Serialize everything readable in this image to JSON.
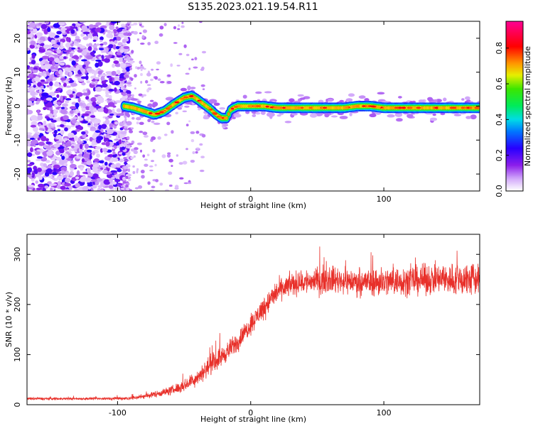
{
  "title": "S135.2023.021.19.54.R11",
  "chart_data": [
    {
      "type": "heatmap",
      "xlabel": "Height of straight line (km)",
      "ylabel": "Frequency (Hz)",
      "xlim": [
        -168,
        172
      ],
      "ylim": [
        -25,
        25
      ],
      "xticks": [
        -100,
        0,
        100
      ],
      "yticks": [
        -20,
        -10,
        0,
        10,
        20
      ],
      "colorbar": {
        "label": "Normalized spectral amplitude",
        "range": [
          0,
          0.95
        ],
        "ticks": [
          "0.0",
          "0.2",
          "0.4",
          "0.6",
          "0.8"
        ],
        "colormap": "rainbow (white-violet-blue-cyan-green-yellow-red-magenta)"
      },
      "ridge": {
        "description": "Signal ridge frequency vs height",
        "x": [
          -95,
          -88,
          -80,
          -72,
          -65,
          -58,
          -50,
          -44,
          -40,
          -35,
          -30,
          -26,
          -22,
          -18,
          -15,
          -10,
          0,
          10,
          20,
          30,
          40,
          50,
          60,
          70,
          80,
          90,
          100,
          110,
          120,
          130,
          140,
          150,
          160,
          170
        ],
        "y": [
          0,
          -0.5,
          -1.5,
          -2.5,
          -1.5,
          0.5,
          2.5,
          3,
          2,
          0.5,
          -1,
          -2.5,
          -3.5,
          -3.5,
          -1,
          0,
          0,
          0,
          -0.5,
          -0.5,
          -0.5,
          -0.5,
          -0.5,
          -0.5,
          0,
          0,
          -0.5,
          -0.5,
          -0.5,
          -0.5,
          -0.5,
          -0.5,
          -0.5,
          -0.5
        ]
      },
      "noise_region": {
        "x_from": -168,
        "x_to": -95,
        "description": "scattered violet speckle noise"
      }
    },
    {
      "type": "line",
      "xlabel": "Height of straight line (km)",
      "ylabel": "SNR (10 * v/v)",
      "xlim": [
        -168,
        172
      ],
      "ylim": [
        0,
        340
      ],
      "xticks": [
        -100,
        0,
        100
      ],
      "yticks": [
        0,
        100,
        200,
        300
      ],
      "color": "#e8302a",
      "envelope": {
        "x": [
          -168,
          -140,
          -110,
          -90,
          -80,
          -70,
          -60,
          -50,
          -40,
          -30,
          -20,
          -10,
          0,
          10,
          20,
          30,
          40,
          60,
          80,
          100,
          120,
          140,
          160,
          172
        ],
        "mean": [
          12,
          12,
          12,
          13,
          17,
          22,
          28,
          38,
          55,
          80,
          100,
          125,
          160,
          195,
          225,
          240,
          245,
          250,
          245,
          245,
          248,
          250,
          250,
          250
        ],
        "noise": [
          4,
          4,
          4,
          6,
          8,
          10,
          14,
          18,
          25,
          30,
          30,
          30,
          30,
          35,
          35,
          35,
          40,
          40,
          40,
          45,
          45,
          45,
          55,
          50
        ]
      }
    }
  ]
}
